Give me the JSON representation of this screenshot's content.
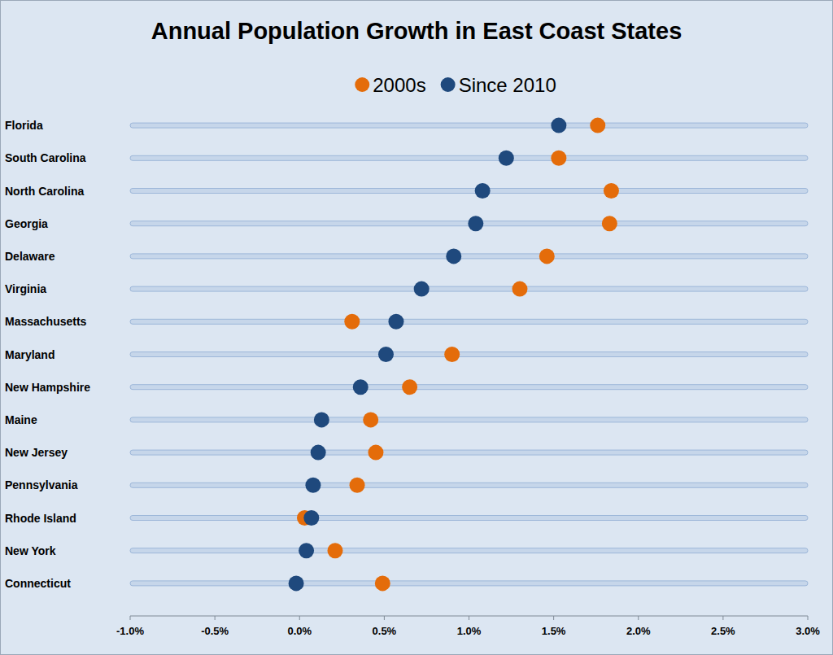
{
  "chart_data": {
    "type": "dot",
    "orientation": "horizontal",
    "title": "Annual Population Growth in East Coast States",
    "categories": [
      "Florida",
      "South Carolina",
      "North Carolina",
      "Georgia",
      "Delaware",
      "Virginia",
      "Massachusetts",
      "Maryland",
      "New Hampshire",
      "Maine",
      "New Jersey",
      "Pennsylvania",
      "Rhode Island",
      "New York",
      "Connecticut"
    ],
    "series": [
      {
        "name": "2000s",
        "color": "#e46c0a",
        "marker": "circle",
        "values": [
          1.76,
          1.53,
          1.84,
          1.83,
          1.46,
          1.3,
          0.31,
          0.9,
          0.65,
          0.42,
          0.45,
          0.34,
          0.03,
          0.21,
          0.49
        ]
      },
      {
        "name": "Since 2010",
        "color": "#1f497d",
        "marker": "circle",
        "values": [
          1.53,
          1.22,
          1.08,
          1.04,
          0.91,
          0.72,
          0.57,
          0.51,
          0.36,
          0.13,
          0.11,
          0.08,
          0.07,
          0.04,
          -0.02
        ]
      }
    ],
    "xlim": [
      -1.0,
      3.0
    ],
    "xticks": [
      {
        "value": -1.0,
        "label": "-1.0%"
      },
      {
        "value": -0.5,
        "label": "-0.5%"
      },
      {
        "value": 0,
        "label": "0.0%"
      },
      {
        "value": 0.5,
        "label": "0.5%"
      },
      {
        "value": 1.0,
        "label": "1.0%"
      },
      {
        "value": 1.5,
        "label": "1.5%"
      },
      {
        "value": 2.0,
        "label": "2.0%"
      },
      {
        "value": 2.5,
        "label": "2.5%"
      },
      {
        "value": 3.0,
        "label": "3.0%"
      }
    ],
    "legend": "top",
    "grid": false
  }
}
